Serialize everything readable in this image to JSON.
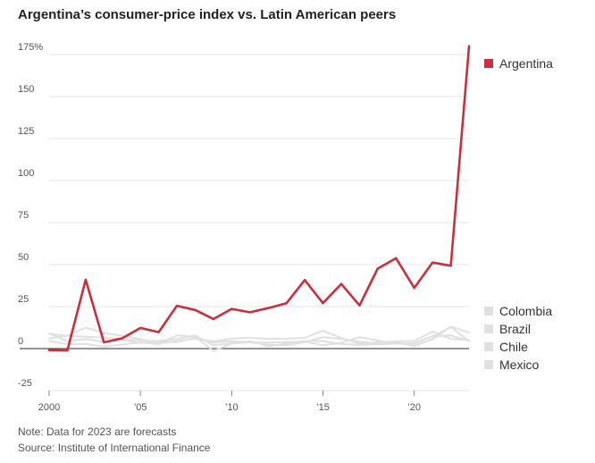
{
  "chart_data": {
    "type": "line",
    "title": "Argentina’s consumer-price index vs. Latin American peers",
    "xlabel": "",
    "ylabel": "",
    "x": [
      2000,
      2001,
      2002,
      2003,
      2004,
      2005,
      2006,
      2007,
      2008,
      2009,
      2010,
      2011,
      2012,
      2013,
      2014,
      2015,
      2016,
      2017,
      2018,
      2019,
      2020,
      2021,
      2022,
      2023
    ],
    "xlim": [
      2000,
      2023
    ],
    "ylim": [
      -25,
      180
    ],
    "y_ticks": [
      -25,
      0,
      25,
      50,
      75,
      100,
      125,
      150,
      175
    ],
    "y_tick_labels": [
      "-25",
      "0",
      "25",
      "50",
      "75",
      "100",
      "125",
      "150",
      "175%"
    ],
    "x_ticks": [
      2000,
      2005,
      2010,
      2015,
      2020
    ],
    "x_tick_labels": [
      "2000",
      "’05",
      "’10",
      "’15",
      "’20"
    ],
    "grid": true,
    "series": [
      {
        "name": "Argentina",
        "color": "#c9303e",
        "highlight": true,
        "values": [
          -0.9,
          -1.1,
          41,
          3.7,
          6.1,
          12.3,
          9.8,
          25.5,
          23,
          17.6,
          23.6,
          21.6,
          24.1,
          27,
          40.8,
          27,
          38.5,
          25.7,
          47.6,
          53.8,
          36.1,
          51.2,
          49.3,
          180
        ]
      },
      {
        "name": "Colombia",
        "color": "#e0e0e0",
        "highlight": false,
        "values": [
          8.8,
          7.6,
          7.0,
          6.5,
          5.5,
          4.9,
          4.5,
          5.7,
          7.7,
          2.0,
          3.2,
          3.7,
          2.4,
          1.9,
          3.7,
          6.8,
          5.8,
          4.1,
          3.2,
          3.8,
          1.6,
          5.6,
          13.1,
          9.5
        ]
      },
      {
        "name": "Brazil",
        "color": "#e0e0e0",
        "highlight": false,
        "values": [
          6.0,
          7.7,
          12.5,
          9.3,
          7.6,
          5.7,
          3.1,
          4.5,
          5.9,
          4.3,
          5.9,
          6.5,
          5.8,
          5.9,
          6.4,
          10.7,
          6.3,
          2.9,
          3.7,
          4.3,
          4.5,
          10.1,
          5.8,
          5.0
        ]
      },
      {
        "name": "Chile",
        "color": "#e0e0e0",
        "highlight": false,
        "values": [
          4.5,
          2.6,
          2.8,
          1.1,
          2.4,
          3.7,
          2.6,
          7.8,
          7.1,
          -1.4,
          3.0,
          4.4,
          1.5,
          3.0,
          4.6,
          4.4,
          2.7,
          2.3,
          2.6,
          3.0,
          3.0,
          7.2,
          12.8,
          4.5
        ]
      },
      {
        "name": "Mexico",
        "color": "#e0e0e0",
        "highlight": false,
        "values": [
          9.0,
          4.4,
          5.7,
          4.0,
          5.2,
          3.3,
          4.1,
          3.8,
          6.5,
          3.6,
          4.4,
          3.8,
          3.6,
          4.0,
          4.1,
          2.1,
          3.4,
          6.8,
          4.8,
          2.8,
          3.2,
          7.4,
          7.8,
          4.6
        ]
      }
    ],
    "legend": [
      {
        "label": "Argentina",
        "color": "#c9303e"
      },
      {
        "label": "Colombia",
        "color": "#e0e0e0"
      },
      {
        "label": "Brazil",
        "color": "#e0e0e0"
      },
      {
        "label": "Chile",
        "color": "#e0e0e0"
      },
      {
        "label": "Mexico",
        "color": "#e0e0e0"
      }
    ]
  },
  "notes": {
    "note": "Note: Data for 2023 are forecasts",
    "source": "Source: Institute of International Finance"
  }
}
